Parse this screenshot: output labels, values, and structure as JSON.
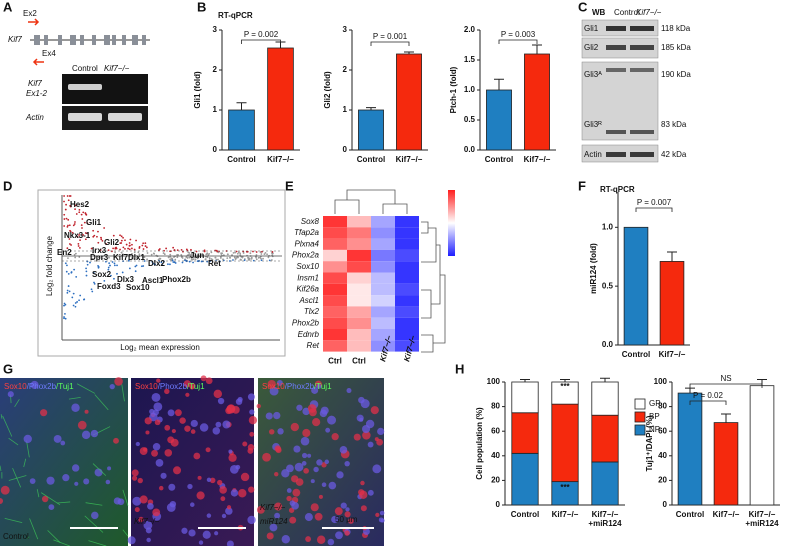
{
  "panel_labels": [
    "A",
    "B",
    "C",
    "D",
    "E",
    "F",
    "G",
    "H"
  ],
  "panel_a": {
    "gene": "Kif7",
    "exon_fwd": "Ex2",
    "exon_rev": "Ex4",
    "lanes": [
      "Control",
      "Kif7−/−"
    ],
    "rows": [
      [
        "Kif7",
        "Ex1-2"
      ],
      [
        "Actin"
      ]
    ]
  },
  "panel_b": {
    "title": "RT-qPCR"
  },
  "panel_c": {
    "title": "WB",
    "lanes": [
      "Control",
      "Kif7−/−"
    ],
    "bands": [
      {
        "name": "Gli1",
        "size": "118 kDa"
      },
      {
        "name": "Gli2",
        "size": "185 kDa"
      },
      {
        "name": "Gli3ᴬ",
        "size": "190 kDa"
      },
      {
        "name": "Gli3ᴿ",
        "size": "83 kDa"
      },
      {
        "name": "Actin",
        "size": "42 kDa"
      }
    ]
  },
  "panel_d": {
    "ylabel": "Log₂ fold change",
    "xlabel": "Log₂ mean expression",
    "genes": [
      "Hes2",
      "Gli1",
      "Nkx3-1",
      "Gli2",
      "En2",
      "Irx3",
      "Dpr3",
      "Kif7",
      "Dlx1",
      "Dlx2",
      "Jun",
      "Ret",
      "Sox2",
      "Dlx3",
      "Foxd3",
      "Ascl1",
      "Sox10",
      "Phox2b"
    ]
  },
  "panel_f": {
    "title": "RT-qPCR"
  },
  "panel_g": {
    "stain": [
      "Sox10",
      "/Phox2b",
      "/Tuj1"
    ],
    "panels": [
      [
        "Control"
      ],
      [
        "Kif7−/−"
      ],
      [
        "Kif7−/−",
        "miR124"
      ]
    ],
    "scale_bar": "50 μm"
  },
  "chart_data": [
    {
      "type": "bar",
      "ylabel": "Gli1 (fold)",
      "categories": [
        [
          "Control"
        ],
        [
          "Kif7−/−"
        ]
      ],
      "values": [
        1.0,
        2.55
      ],
      "errors": [
        0.18,
        0.15
      ],
      "colors": [
        "#1f7fc1",
        "#f5290d"
      ],
      "ylim": [
        0,
        3
      ],
      "yticks": [
        0,
        1,
        2,
        3
      ],
      "annotations": [
        "P = 0.002"
      ]
    },
    {
      "type": "bar",
      "ylabel": "Gli2 (fold)",
      "categories": [
        [
          "Control"
        ],
        [
          "Kif7−/−"
        ]
      ],
      "values": [
        1.0,
        2.4
      ],
      "errors": [
        0.06,
        0.05
      ],
      "colors": [
        "#1f7fc1",
        "#f5290d"
      ],
      "ylim": [
        0,
        3
      ],
      "yticks": [
        0,
        1,
        2,
        3
      ],
      "annotations": [
        "P = 0.001"
      ]
    },
    {
      "type": "bar",
      "ylabel": "Ptch-1 (fold)",
      "categories": [
        [
          "Control"
        ],
        [
          "Kif7−/−"
        ]
      ],
      "values": [
        1.0,
        1.6
      ],
      "errors": [
        0.18,
        0.15
      ],
      "colors": [
        "#1f7fc1",
        "#f5290d"
      ],
      "ylim": [
        0,
        2
      ],
      "yticks": [
        {
          "value": 0,
          "label": "0.0"
        },
        {
          "value": 0.5,
          "label": "0.5"
        },
        {
          "value": 1,
          "label": "1.0"
        },
        {
          "value": 1.5,
          "label": "1.5"
        },
        {
          "value": 2,
          "label": "2.0"
        }
      ],
      "annotations": [
        "P = 0.003"
      ]
    },
    {
      "type": "heatmap",
      "rows": [
        "Sox8",
        "Tfap2a",
        "Plxna4",
        "Phox2a",
        "Sox10",
        "Insm1",
        "Kif26a",
        "Ascl1",
        "Tlx2",
        "Phox2b",
        "Ednrb",
        "Ret"
      ],
      "columns": [
        "Ctrl",
        "Ctrl",
        "Kif7−/−",
        "Kif7−/−"
      ],
      "zlim": [
        -1,
        1
      ],
      "values": [
        [
          0.9,
          0.3,
          -0.4,
          -0.9
        ],
        [
          0.8,
          0.6,
          -0.5,
          -0.9
        ],
        [
          0.7,
          0.5,
          -0.4,
          -0.9
        ],
        [
          0.2,
          0.9,
          -0.6,
          -0.8
        ],
        [
          0.5,
          0.8,
          -0.5,
          -0.9
        ],
        [
          0.8,
          0.2,
          -0.3,
          -0.9
        ],
        [
          0.9,
          0.1,
          -0.3,
          -0.8
        ],
        [
          0.8,
          0.1,
          -0.2,
          -0.9
        ],
        [
          0.7,
          0.4,
          -0.4,
          -0.8
        ],
        [
          0.8,
          0.5,
          -0.3,
          -0.9
        ],
        [
          0.9,
          0.3,
          -0.4,
          -0.9
        ],
        [
          0.7,
          0.3,
          -0.5,
          -0.8
        ]
      ]
    },
    {
      "type": "bar",
      "ylabel": "miR124 (fold)",
      "categories": [
        [
          "Control"
        ],
        [
          "Kif7−/−"
        ]
      ],
      "values": [
        1.0,
        0.71
      ],
      "errors": [
        null,
        0.08
      ],
      "colors": [
        "#1f7fc1",
        "#f5290d"
      ],
      "ylim": [
        0,
        1.3
      ],
      "yticks": [
        {
          "value": 0,
          "label": "0.0"
        },
        {
          "value": 0.5,
          "label": "0.5"
        },
        {
          "value": 1,
          "label": "1.0"
        }
      ],
      "annotations": [
        "P = 0.007"
      ]
    },
    {
      "type": "stacked_bar",
      "ylabel": "Cell population (%)",
      "categories": [
        [
          "Control"
        ],
        [
          "Kif7−/−"
        ],
        [
          "Kif7−/−",
          "+miR124"
        ]
      ],
      "ylim": [
        0,
        100
      ],
      "yticks": [
        0,
        20,
        40,
        60,
        80,
        100
      ],
      "series": [
        {
          "name": "NP",
          "color": "#1f7fc1",
          "values": [
            42,
            19,
            35
          ],
          "errors": [
            2,
            5,
            2
          ]
        },
        {
          "name": "BP",
          "color": "#f5290d",
          "values": [
            33,
            63,
            38
          ],
          "errors": [
            10,
            7,
            10
          ]
        },
        {
          "name": "GP",
          "color": "#ffffff",
          "values": [
            25,
            18,
            27
          ],
          "errors": [
            2,
            2,
            3
          ]
        }
      ],
      "annotations": [
        "***",
        "***"
      ]
    },
    {
      "type": "bar",
      "ylabel": "Tuj1⁺/DAPI (%)",
      "categories": [
        [
          "Control"
        ],
        [
          "Kif7−/−"
        ],
        [
          "Kif7−/−",
          "+miR124"
        ]
      ],
      "values": [
        91,
        67,
        97
      ],
      "errors": [
        4,
        7,
        5
      ],
      "colors": [
        "#1f7fc1",
        "#f5290d",
        "#ffffff"
      ],
      "ylim": [
        0,
        100
      ],
      "yticks": [
        0,
        20,
        40,
        60,
        80,
        100
      ],
      "annotations": [
        "NS",
        "P = 0.02"
      ]
    }
  ]
}
